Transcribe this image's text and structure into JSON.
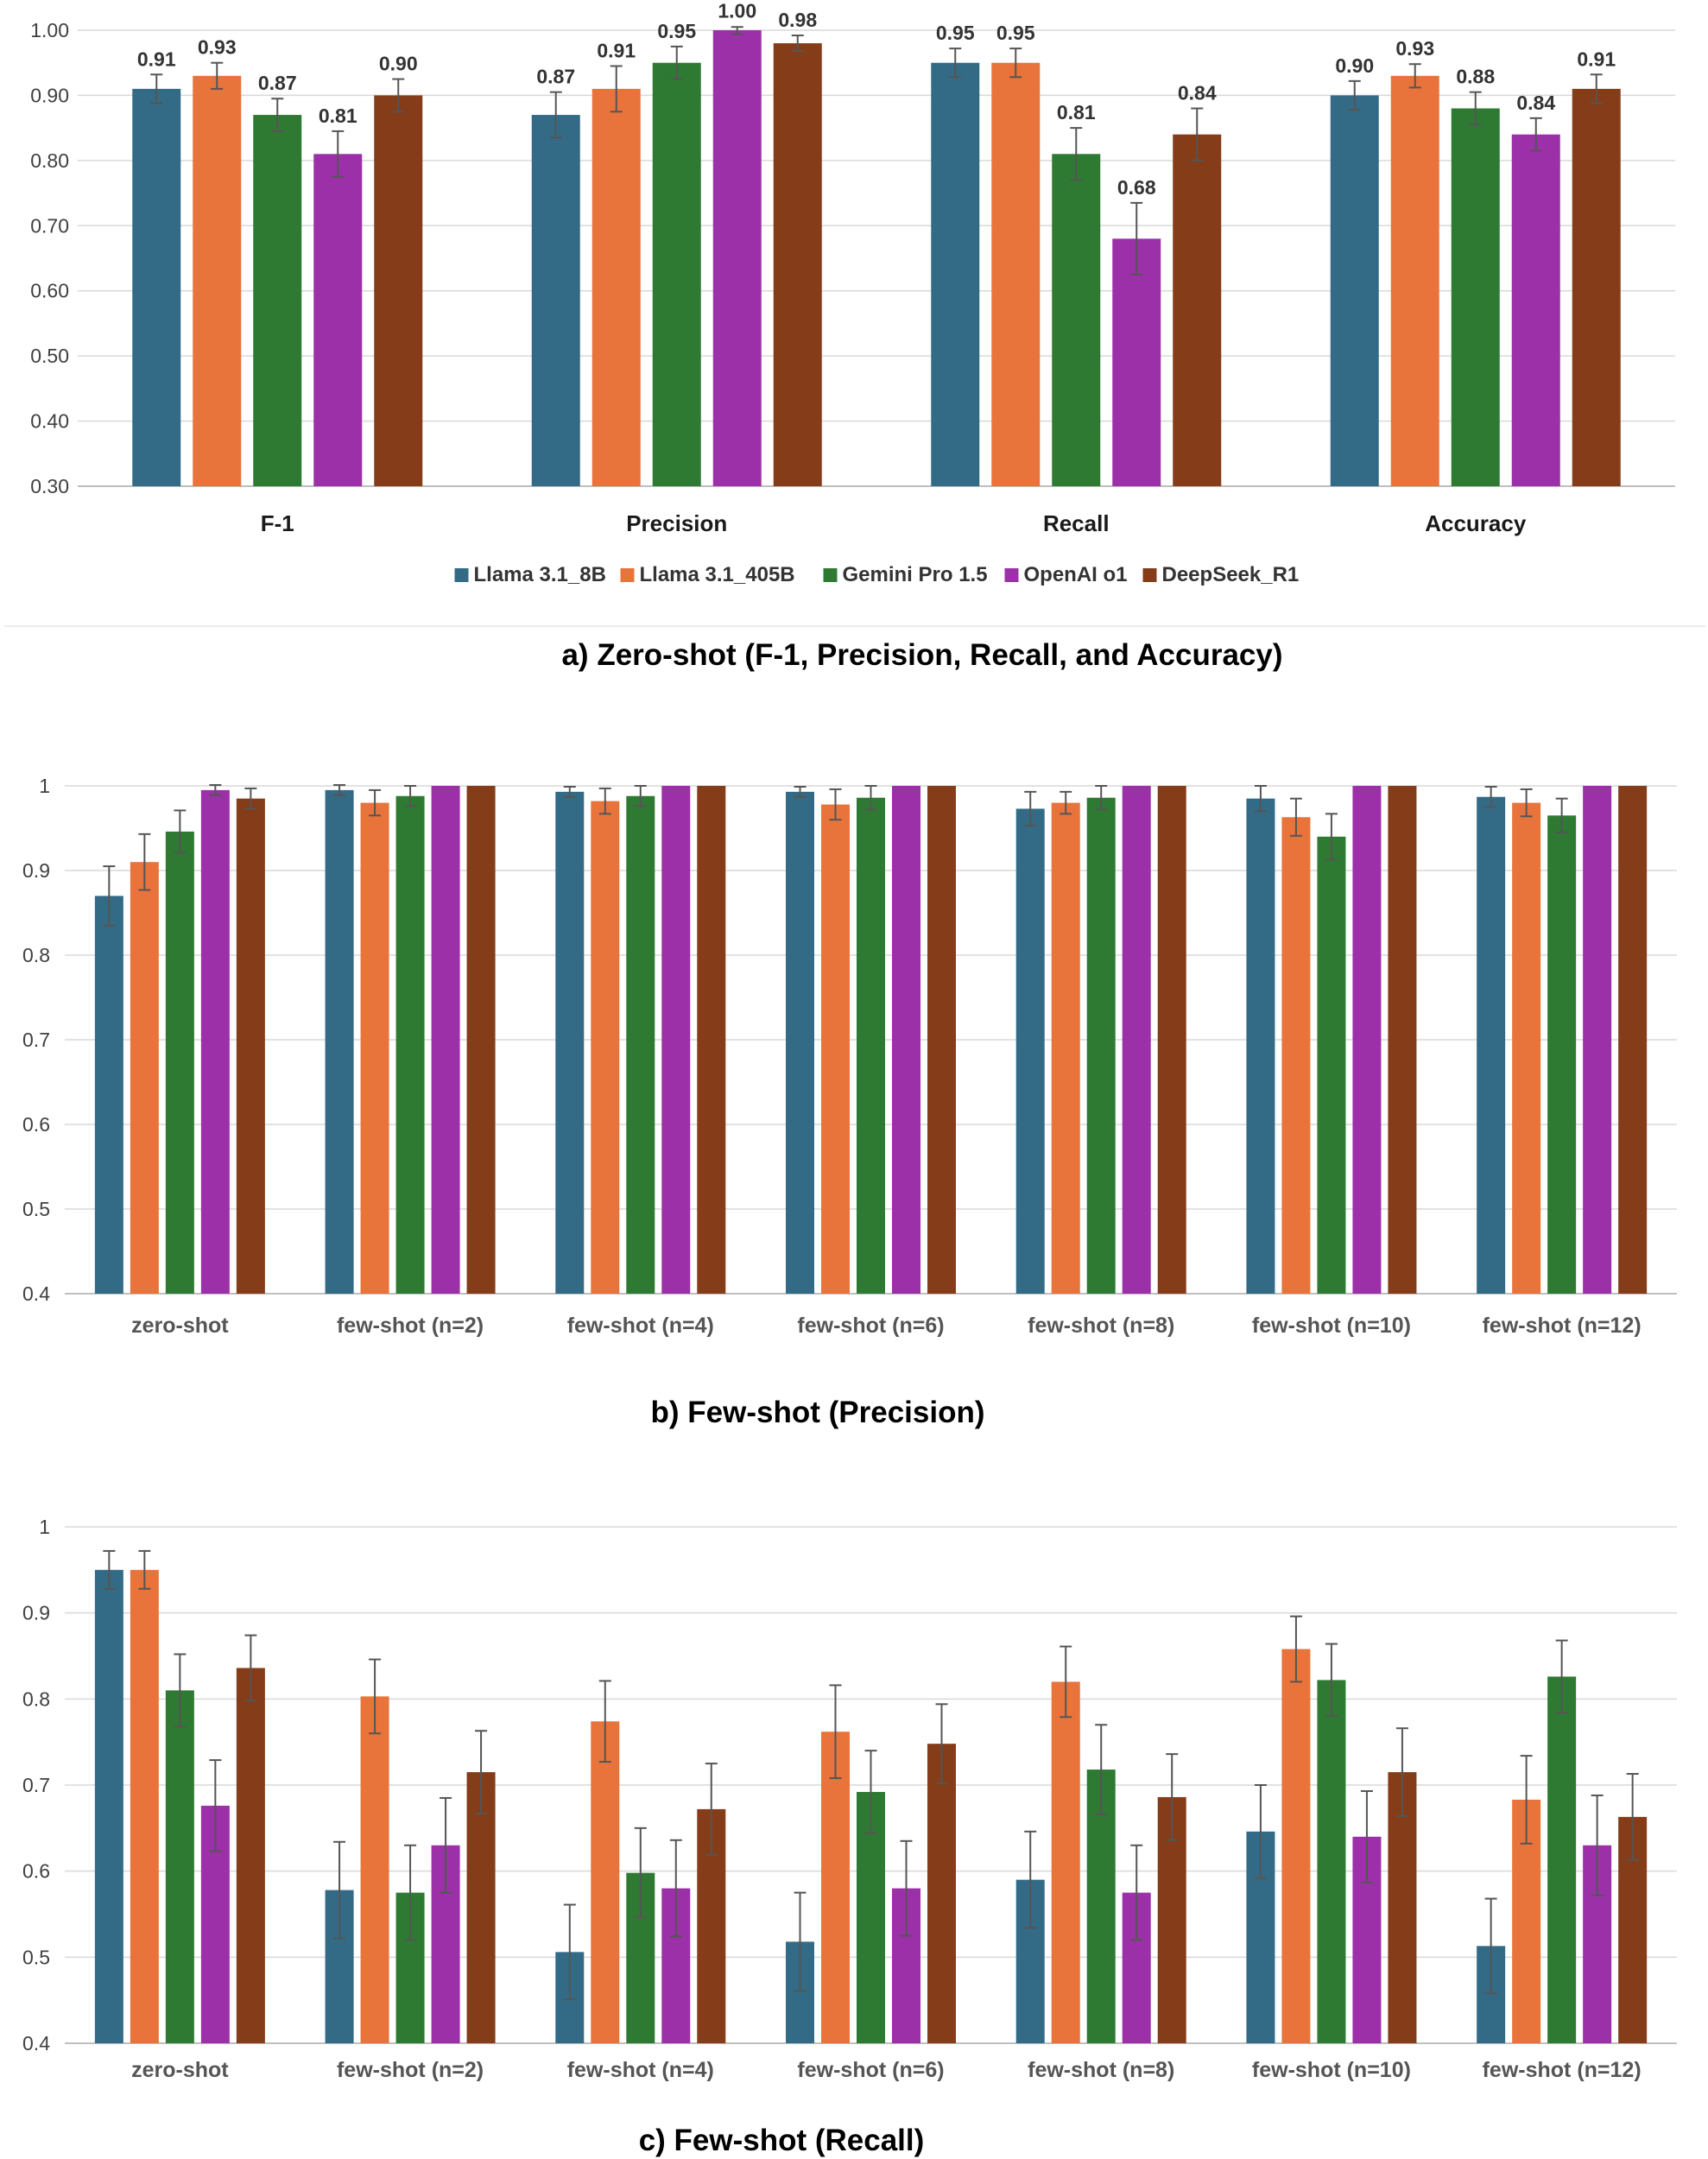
{
  "colors": {
    "Llama 3.1_8B": "#336b87",
    "Llama 3.1_405B": "#e8743b",
    "Gemini Pro 1.5": "#2f7a32",
    "OpenAI o1": "#9c30a8",
    "DeepSeek_R1": "#843c19"
  },
  "chart_data": [
    {
      "type": "bar",
      "caption": "a) Zero-shot (F-1, Precision, Recall, and Accuracy)",
      "categories": [
        "F-1",
        "Precision",
        "Recall",
        "Accuracy"
      ],
      "ylim": [
        0.3,
        1.0
      ],
      "yticks": [
        "0.30",
        "0.40",
        "0.50",
        "0.60",
        "0.70",
        "0.80",
        "0.90",
        "1.00"
      ],
      "legend": [
        "Llama 3.1_8B",
        "Llama 3.1_405B",
        "Gemini Pro 1.5",
        "OpenAI o1",
        "DeepSeek_R1"
      ],
      "legend_position": "bottom",
      "series": [
        {
          "name": "Llama 3.1_8B",
          "values": [
            0.91,
            0.87,
            0.95,
            0.9
          ],
          "labels": [
            "0.91",
            "0.87",
            "0.95",
            "0.90"
          ],
          "errors": [
            0.022,
            0.035,
            0.022,
            0.022
          ]
        },
        {
          "name": "Llama 3.1_405B",
          "values": [
            0.93,
            0.91,
            0.95,
            0.93
          ],
          "labels": [
            "0.93",
            "0.91",
            "0.95",
            "0.93"
          ],
          "errors": [
            0.02,
            0.035,
            0.022,
            0.018
          ]
        },
        {
          "name": "Gemini Pro 1.5",
          "values": [
            0.87,
            0.95,
            0.81,
            0.88
          ],
          "labels": [
            "0.87",
            "0.95",
            "0.81",
            "0.88"
          ],
          "errors": [
            0.025,
            0.025,
            0.04,
            0.025
          ]
        },
        {
          "name": "OpenAI o1",
          "values": [
            0.81,
            1.0,
            0.68,
            0.84
          ],
          "labels": [
            "0.81",
            "1.00",
            "0.68",
            "0.84"
          ],
          "errors": [
            0.035,
            0.006,
            0.055,
            0.025
          ]
        },
        {
          "name": "DeepSeek_R1",
          "values": [
            0.9,
            0.98,
            0.84,
            0.91
          ],
          "labels": [
            "0.90",
            "0.98",
            "0.84",
            "0.91"
          ],
          "errors": [
            0.025,
            0.012,
            0.04,
            0.022
          ]
        }
      ]
    },
    {
      "type": "bar",
      "caption": "b) Few-shot (Precision)",
      "categories": [
        "zero-shot",
        "few-shot (n=2)",
        "few-shot (n=4)",
        "few-shot (n=6)",
        "few-shot (n=8)",
        "few-shot (n=10)",
        "few-shot (n=12)"
      ],
      "ylim": [
        0.4,
        1.0
      ],
      "yticks": [
        "0.4",
        "0.5",
        "0.6",
        "0.7",
        "0.8",
        "0.9",
        "1"
      ],
      "series": [
        {
          "name": "Llama 3.1_8B",
          "values": [
            0.87,
            0.995,
            0.993,
            0.993,
            0.973,
            0.985,
            0.987
          ],
          "errors": [
            0.035,
            0.006,
            0.006,
            0.006,
            0.02,
            0.015,
            0.012
          ]
        },
        {
          "name": "Llama 3.1_405B",
          "values": [
            0.91,
            0.98,
            0.982,
            0.978,
            0.98,
            0.963,
            0.98
          ],
          "errors": [
            0.033,
            0.015,
            0.015,
            0.018,
            0.013,
            0.022,
            0.016
          ]
        },
        {
          "name": "Gemini Pro 1.5",
          "values": [
            0.946,
            0.988,
            0.988,
            0.986,
            0.986,
            0.94,
            0.965
          ],
          "errors": [
            0.025,
            0.012,
            0.012,
            0.014,
            0.014,
            0.027,
            0.02
          ]
        },
        {
          "name": "OpenAI o1",
          "values": [
            0.995,
            1.0,
            1.0,
            1.0,
            1.0,
            1.0,
            1.0
          ],
          "errors": [
            0.006,
            0,
            0,
            0,
            0,
            0,
            0
          ]
        },
        {
          "name": "DeepSeek_R1",
          "values": [
            0.985,
            1.0,
            1.0,
            1.0,
            1.0,
            1.0,
            1.0
          ],
          "errors": [
            0.012,
            0,
            0,
            0,
            0,
            0,
            0
          ]
        }
      ]
    },
    {
      "type": "bar",
      "caption": "c) Few-shot (Recall)",
      "categories": [
        "zero-shot",
        "few-shot (n=2)",
        "few-shot (n=4)",
        "few-shot (n=6)",
        "few-shot (n=8)",
        "few-shot (n=10)",
        "few-shot (n=12)"
      ],
      "ylim": [
        0.4,
        1.0
      ],
      "yticks": [
        "0.4",
        "0.5",
        "0.6",
        "0.7",
        "0.8",
        "0.9",
        "1"
      ],
      "series": [
        {
          "name": "Llama 3.1_8B",
          "values": [
            0.95,
            0.578,
            0.506,
            0.518,
            0.59,
            0.646,
            0.513
          ],
          "errors": [
            0.022,
            0.056,
            0.055,
            0.057,
            0.056,
            0.054,
            0.055
          ]
        },
        {
          "name": "Llama 3.1_405B",
          "values": [
            0.95,
            0.803,
            0.774,
            0.762,
            0.82,
            0.858,
            0.683
          ],
          "errors": [
            0.022,
            0.043,
            0.047,
            0.054,
            0.041,
            0.038,
            0.051
          ]
        },
        {
          "name": "Gemini Pro 1.5",
          "values": [
            0.81,
            0.575,
            0.598,
            0.692,
            0.718,
            0.822,
            0.826
          ],
          "errors": [
            0.042,
            0.055,
            0.052,
            0.048,
            0.052,
            0.042,
            0.042
          ]
        },
        {
          "name": "OpenAI o1",
          "values": [
            0.676,
            0.63,
            0.58,
            0.58,
            0.575,
            0.64,
            0.63
          ],
          "errors": [
            0.053,
            0.055,
            0.056,
            0.055,
            0.055,
            0.053,
            0.058
          ]
        },
        {
          "name": "DeepSeek_R1",
          "values": [
            0.836,
            0.715,
            0.672,
            0.748,
            0.686,
            0.715,
            0.663
          ],
          "errors": [
            0.038,
            0.048,
            0.053,
            0.046,
            0.05,
            0.051,
            0.05
          ]
        }
      ]
    }
  ]
}
